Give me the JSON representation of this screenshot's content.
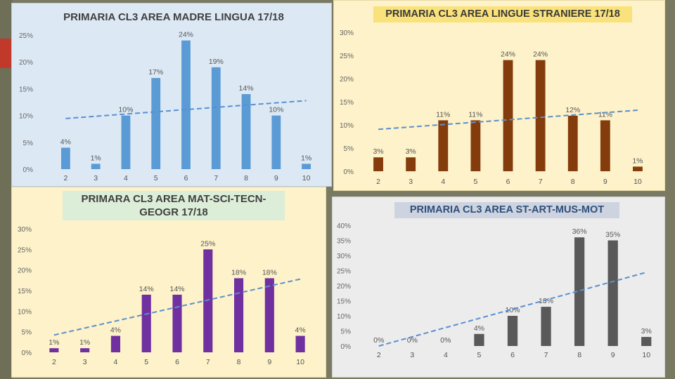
{
  "chart_data": [
    {
      "type": "bar",
      "title": "PRIMARIA CL3 AREA MADRE LINGUA 17/18",
      "categories": [
        "2",
        "3",
        "4",
        "5",
        "6",
        "7",
        "8",
        "9",
        "10"
      ],
      "values": [
        4,
        1,
        10,
        17,
        24,
        19,
        14,
        10,
        1
      ],
      "data_labels": [
        "4%",
        "1%",
        "10%",
        "17%",
        "24%",
        "19%",
        "14%",
        "10%",
        "1%"
      ],
      "ytick_labels": [
        "0%",
        "5%",
        "10%",
        "15%",
        "20%",
        "25%"
      ],
      "ylim": [
        0,
        25
      ],
      "trendline": "linear",
      "color": "#5b9bd5"
    },
    {
      "type": "bar",
      "title": "PRIMARIA CL3 AREA LINGUE STRANIERE 17/18",
      "categories": [
        "2",
        "3",
        "4",
        "5",
        "6",
        "7",
        "8",
        "9",
        "10"
      ],
      "values": [
        3,
        3,
        11,
        11,
        24,
        24,
        12,
        11,
        1
      ],
      "data_labels": [
        "3%",
        "3%",
        "11%",
        "11%",
        "24%",
        "24%",
        "12%",
        "11%",
        "1%"
      ],
      "ytick_labels": [
        "0%",
        "5%",
        "10%",
        "15%",
        "20%",
        "25%",
        "30%"
      ],
      "ylim": [
        0,
        30
      ],
      "trendline": "linear",
      "color": "#843c0c"
    },
    {
      "type": "bar",
      "title": "PRIMARA CL3 AREA MAT-SCI-TECN-GEOGR 17/18",
      "categories": [
        "2",
        "3",
        "4",
        "5",
        "6",
        "7",
        "8",
        "9",
        "10"
      ],
      "values": [
        1,
        1,
        4,
        14,
        14,
        25,
        18,
        18,
        4
      ],
      "data_labels": [
        "1%",
        "1%",
        "4%",
        "14%",
        "14%",
        "25%",
        "18%",
        "18%",
        "4%"
      ],
      "ytick_labels": [
        "0%",
        "5%",
        "10%",
        "15%",
        "20%",
        "25%",
        "30%"
      ],
      "ylim": [
        0,
        30
      ],
      "trendline": "linear",
      "color": "#7030a0"
    },
    {
      "type": "bar",
      "title": "PRIMARIA CL3 AREA ST-ART-MUS-MOT",
      "categories": [
        "2",
        "3",
        "4",
        "5",
        "6",
        "7",
        "8",
        "9",
        "10"
      ],
      "values": [
        0,
        0,
        0,
        4,
        10,
        13,
        36,
        35,
        3
      ],
      "data_labels": [
        "0%",
        "0%",
        "0%",
        "4%",
        "10%",
        "13%",
        "36%",
        "35%",
        "3%"
      ],
      "ytick_labels": [
        "0%",
        "5%",
        "10%",
        "15%",
        "20%",
        "25%",
        "30%",
        "35%",
        "40%"
      ],
      "ylim": [
        0,
        40
      ],
      "trendline": "linear",
      "color": "#595959"
    }
  ]
}
